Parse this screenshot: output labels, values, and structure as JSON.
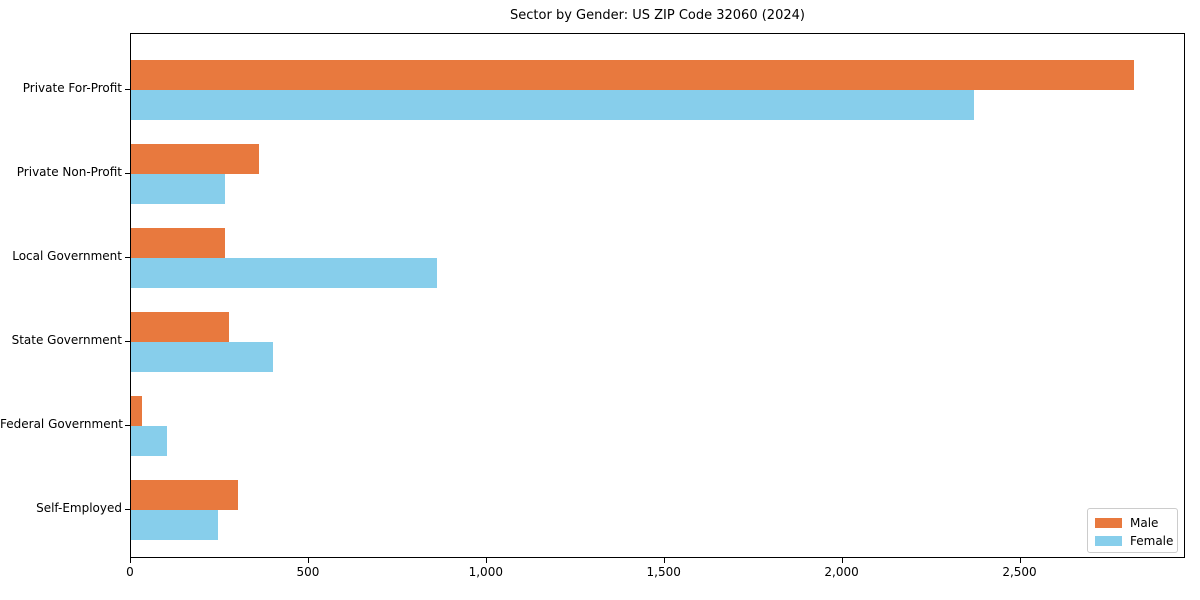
{
  "title": "Sector by Gender: US ZIP Code 32060 (2024)",
  "colors": {
    "male": "#e8793e",
    "female": "#87ceeb",
    "axis": "#000000",
    "legend_border": "#cccccc",
    "background": "#ffffff"
  },
  "legend": {
    "position": "lower right",
    "items": [
      {
        "label": "Male",
        "color": "#e8793e"
      },
      {
        "label": "Female",
        "color": "#87ceeb"
      }
    ]
  },
  "chart_data": {
    "type": "bar",
    "orientation": "horizontal",
    "title": "Sector by Gender: US ZIP Code 32060 (2024)",
    "categories": [
      "Private For-Profit",
      "Private Non-Profit",
      "Local Government",
      "State Government",
      "Federal Government",
      "Self-Employed"
    ],
    "series": [
      {
        "name": "Male",
        "color": "#e8793e",
        "values": [
          2820,
          360,
          265,
          275,
          30,
          300
        ]
      },
      {
        "name": "Female",
        "color": "#87ceeb",
        "values": [
          2370,
          265,
          860,
          400,
          100,
          245
        ]
      }
    ],
    "xlabel": "",
    "ylabel": "",
    "xlim": [
      0,
      2965
    ],
    "x_ticks": [
      0,
      500,
      1000,
      1500,
      2000,
      2500
    ],
    "x_tick_labels": [
      "0",
      "500",
      "1,000",
      "1,500",
      "2,000",
      "2,500"
    ],
    "grid": false,
    "legend_position": "lower right"
  }
}
